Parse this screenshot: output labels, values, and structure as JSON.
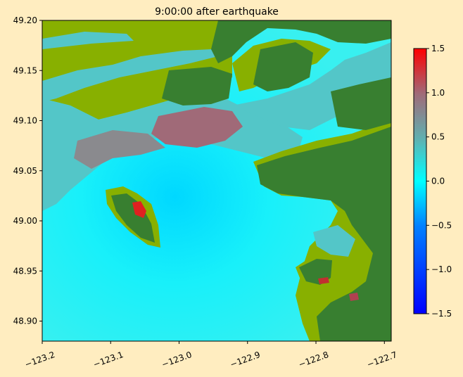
{
  "chart_data": {
    "type": "heatmap",
    "title": "9:00:00 after earthquake",
    "xlabel": "",
    "ylabel": "",
    "xlim": [
      -123.2,
      -122.69
    ],
    "ylim": [
      48.88,
      49.2
    ],
    "x_ticks": [
      -123.2,
      -123.1,
      -123.0,
      -122.9,
      -122.8,
      -122.7
    ],
    "x_tick_labels": [
      "−123.2",
      "−123.1",
      "−123.0",
      "−122.9",
      "−122.8",
      "−122.7"
    ],
    "y_ticks": [
      48.9,
      48.95,
      49.0,
      49.05,
      49.1,
      49.15,
      49.2
    ],
    "y_tick_labels": [
      "48.90",
      "48.95",
      "49.00",
      "49.05",
      "49.10",
      "49.15",
      "49.20"
    ],
    "colorbar": {
      "range": [
        -1.5,
        1.5
      ],
      "ticks": [
        -1.5,
        -1.0,
        -0.5,
        0.0,
        0.5,
        1.0,
        1.5
      ],
      "tick_labels": [
        "−1.5",
        "−1.0",
        "−0.5",
        "0.0",
        "0.5",
        "1.0",
        "1.5"
      ],
      "colors": [
        "#0000ff",
        "#00ffff",
        "#ff0000"
      ]
    },
    "colors": {
      "background": "#ffedc0",
      "water": "#00ffff",
      "water_light": "#2fe8f4",
      "low_land": "#88b000",
      "high_land": "#387f30",
      "flooded": "#53c6c8",
      "deep_flood": "#a06a78",
      "peak": "#e02020"
    }
  }
}
